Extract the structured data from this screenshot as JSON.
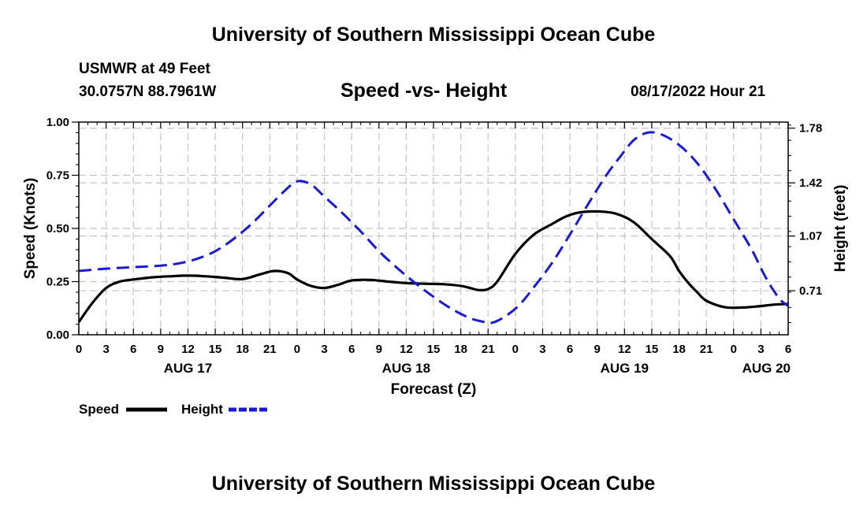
{
  "header": {
    "title": "University of Southern Mississippi Ocean Cube",
    "station": "USMWR at 49 Feet",
    "coordinates": "30.0757N  88.7961W",
    "datetime": "08/17/2022 Hour 21"
  },
  "footer": {
    "title": "University of Southern Mississippi Ocean Cube"
  },
  "chart_data": {
    "type": "line",
    "title": "Speed -vs- Height",
    "xlabel": "Forecast (Z)",
    "ylabel": "Speed (Knots)",
    "y2label": "Height (feet)",
    "x_unit": "hours since AUG 17 00Z",
    "xlim": [
      0,
      78
    ],
    "ylim": [
      0,
      1
    ],
    "y2lim": [
      0.42,
      1.82
    ],
    "grid": true,
    "x_ticks": [
      {
        "x": 0,
        "label": "0"
      },
      {
        "x": 3,
        "label": "3"
      },
      {
        "x": 6,
        "label": "6"
      },
      {
        "x": 9,
        "label": "9"
      },
      {
        "x": 12,
        "label": "12"
      },
      {
        "x": 15,
        "label": "15"
      },
      {
        "x": 18,
        "label": "18"
      },
      {
        "x": 21,
        "label": "21"
      },
      {
        "x": 24,
        "label": "0"
      },
      {
        "x": 27,
        "label": "3"
      },
      {
        "x": 30,
        "label": "6"
      },
      {
        "x": 33,
        "label": "9"
      },
      {
        "x": 36,
        "label": "12"
      },
      {
        "x": 39,
        "label": "15"
      },
      {
        "x": 42,
        "label": "18"
      },
      {
        "x": 45,
        "label": "21"
      },
      {
        "x": 48,
        "label": "0"
      },
      {
        "x": 51,
        "label": "3"
      },
      {
        "x": 54,
        "label": "6"
      },
      {
        "x": 57,
        "label": "9"
      },
      {
        "x": 60,
        "label": "12"
      },
      {
        "x": 63,
        "label": "15"
      },
      {
        "x": 66,
        "label": "18"
      },
      {
        "x": 69,
        "label": "21"
      },
      {
        "x": 72,
        "label": "0"
      },
      {
        "x": 75,
        "label": "3"
      },
      {
        "x": 78,
        "label": "6"
      }
    ],
    "date_labels": [
      {
        "x": 12,
        "label": "AUG 17"
      },
      {
        "x": 36,
        "label": "AUG 18"
      },
      {
        "x": 60,
        "label": "AUG 19"
      },
      {
        "x": 75.6,
        "label": "AUG 20"
      }
    ],
    "y_ticks": [
      {
        "v": 0,
        "label": "0.00"
      },
      {
        "v": 0.25,
        "label": "0.25"
      },
      {
        "v": 0.5,
        "label": "0.50"
      },
      {
        "v": 0.75,
        "label": "0.75"
      },
      {
        "v": 1,
        "label": "1.00"
      }
    ],
    "y2_ticks": [
      {
        "v": 0.71,
        "label": "0.71"
      },
      {
        "v": 1.07,
        "label": "1.07"
      },
      {
        "v": 1.42,
        "label": "1.42"
      },
      {
        "v": 1.78,
        "label": "1.78"
      }
    ],
    "legend": [
      {
        "name": "Speed",
        "color": "#000000",
        "dash": false
      },
      {
        "name": "Height",
        "color": "#1a1ad0",
        "dash": true
      }
    ],
    "series": [
      {
        "name": "Speed",
        "axis": "left",
        "color": "#000000",
        "dash": false,
        "x": [
          0,
          1.5,
          3,
          4.5,
          6,
          8,
          10,
          12,
          14,
          16,
          18,
          20,
          21.5,
          23,
          24,
          25.5,
          27,
          28.5,
          30,
          32,
          34,
          36,
          38,
          40,
          42,
          43,
          44,
          45,
          46,
          48,
          50,
          52,
          53.5,
          55,
          57,
          59,
          61,
          63,
          65,
          66,
          67,
          68,
          69,
          71,
          73,
          75,
          76.5,
          78
        ],
        "values": [
          0.06,
          0.15,
          0.22,
          0.25,
          0.26,
          0.27,
          0.275,
          0.278,
          0.275,
          0.268,
          0.262,
          0.285,
          0.3,
          0.29,
          0.26,
          0.23,
          0.22,
          0.235,
          0.255,
          0.258,
          0.25,
          0.243,
          0.24,
          0.238,
          0.23,
          0.22,
          0.21,
          0.215,
          0.25,
          0.38,
          0.47,
          0.52,
          0.555,
          0.575,
          0.58,
          0.57,
          0.53,
          0.45,
          0.37,
          0.3,
          0.245,
          0.2,
          0.16,
          0.13,
          0.128,
          0.135,
          0.142,
          0.145
        ]
      },
      {
        "name": "Height",
        "axis": "right",
        "color": "#1a1ad0",
        "dash": true,
        "x": [
          0,
          3,
          6,
          9,
          11,
          13,
          15,
          17,
          19,
          21,
          22.5,
          24,
          25.5,
          27,
          29,
          31,
          33,
          35,
          37,
          39,
          41,
          43,
          44.5,
          45.5,
          47,
          48.5,
          50,
          52,
          54,
          56,
          58,
          59.5,
          61,
          62.5,
          64,
          66,
          68,
          70,
          72,
          74,
          75.5,
          77,
          78
        ],
        "values": [
          0.84,
          0.855,
          0.865,
          0.875,
          0.89,
          0.92,
          0.97,
          1.05,
          1.15,
          1.27,
          1.36,
          1.43,
          1.41,
          1.33,
          1.22,
          1.1,
          0.97,
          0.86,
          0.76,
          0.67,
          0.59,
          0.53,
          0.505,
          0.5,
          0.545,
          0.62,
          0.73,
          0.89,
          1.08,
          1.28,
          1.47,
          1.59,
          1.7,
          1.75,
          1.74,
          1.67,
          1.55,
          1.38,
          1.18,
          0.98,
          0.8,
          0.66,
          0.61
        ]
      }
    ]
  }
}
